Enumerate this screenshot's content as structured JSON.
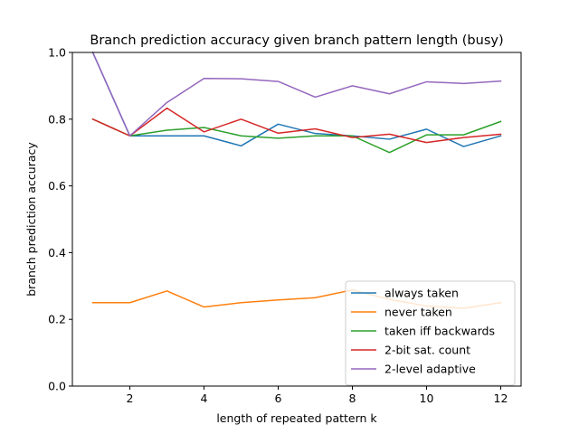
{
  "chart_data": {
    "type": "line",
    "title": "Branch prediction accuracy given branch pattern length (busy)",
    "xlabel": "length of repeated pattern k",
    "ylabel": "branch prediction accuracy",
    "x": [
      1,
      2,
      3,
      4,
      5,
      6,
      7,
      8,
      9,
      10,
      11,
      12
    ],
    "xlim": [
      0.45,
      12.55
    ],
    "ylim": [
      0,
      1
    ],
    "xticks": [
      2,
      4,
      6,
      8,
      10,
      12
    ],
    "yticks": [
      0.0,
      0.2,
      0.4,
      0.6,
      0.8,
      1.0
    ],
    "xtick_labels": [
      "2",
      "4",
      "6",
      "8",
      "10",
      "12"
    ],
    "ytick_labels": [
      "0.0",
      "0.2",
      "0.4",
      "0.6",
      "0.8",
      "1.0"
    ],
    "grid": false,
    "legend_position": "lower-right",
    "series": [
      {
        "name": "always taken",
        "color": "#1f77b4",
        "values": [
          1.0,
          0.75,
          0.75,
          0.75,
          0.72,
          0.785,
          0.757,
          0.75,
          0.74,
          0.77,
          0.718,
          0.75
        ]
      },
      {
        "name": "never taken",
        "color": "#ff7f0e",
        "values": [
          0.25,
          0.25,
          0.285,
          0.237,
          0.25,
          0.258,
          0.265,
          0.288,
          0.26,
          0.24,
          0.233,
          0.25
        ]
      },
      {
        "name": "taken iff backwards",
        "color": "#2ca02c",
        "values": [
          0.8,
          0.75,
          0.767,
          0.775,
          0.75,
          0.743,
          0.75,
          0.75,
          0.7,
          0.753,
          0.753,
          0.793
        ]
      },
      {
        "name": "2-bit sat. count",
        "color": "#d62728",
        "values": [
          0.8,
          0.75,
          0.833,
          0.762,
          0.8,
          0.758,
          0.771,
          0.745,
          0.755,
          0.73,
          0.745,
          0.755
        ]
      },
      {
        "name": "2-level adaptive",
        "color": "#9467bd",
        "values": [
          1.0,
          0.75,
          0.85,
          0.922,
          0.921,
          0.913,
          0.866,
          0.9,
          0.876,
          0.912,
          0.907,
          0.914
        ]
      }
    ]
  }
}
